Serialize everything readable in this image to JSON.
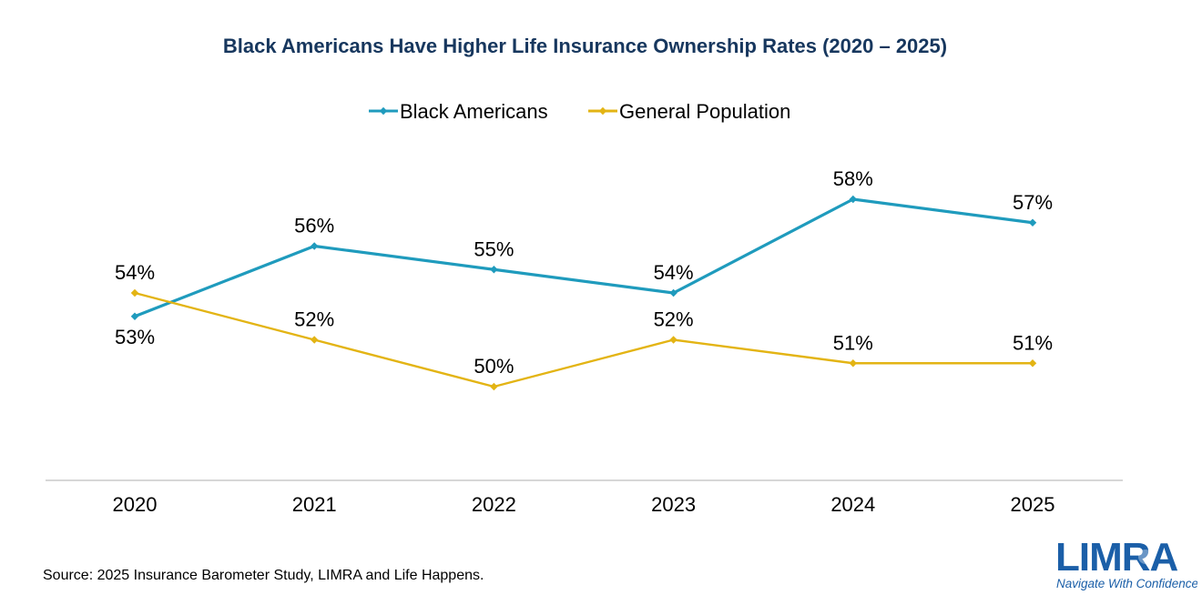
{
  "chart_data": {
    "type": "line",
    "title": "Black Americans Have Higher Life Insurance Ownership Rates (2020 – 2025)",
    "categories": [
      "2020",
      "2021",
      "2022",
      "2023",
      "2024",
      "2025"
    ],
    "series": [
      {
        "name": "Black Americans",
        "color": "#1f9bbd",
        "values": [
          53,
          56,
          55,
          54,
          58,
          57
        ],
        "labels": [
          "53%",
          "56%",
          "55%",
          "54%",
          "58%",
          "57%"
        ]
      },
      {
        "name": "General Population",
        "color": "#e3b414",
        "values": [
          54,
          52,
          50,
          52,
          51,
          51
        ],
        "labels": [
          "54%",
          "52%",
          "50%",
          "52%",
          "51%",
          "51%"
        ]
      }
    ],
    "ylim": [
      46,
      62
    ],
    "grid": false,
    "legend": "top-center"
  },
  "source": "Source: 2025 Insurance Barometer Study, LIMRA and Life Happens.",
  "logo": {
    "name": "LIMRA",
    "tagline": "Navigate With Confidence",
    "color": "#1b5fa8"
  }
}
